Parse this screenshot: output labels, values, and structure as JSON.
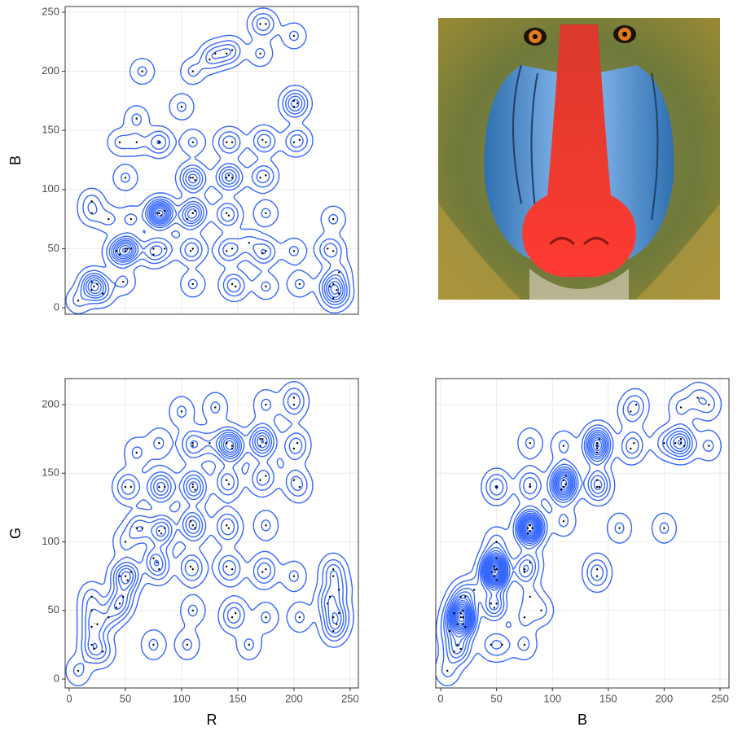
{
  "chart_data": [
    {
      "type": "density2d",
      "y_label": "B",
      "contour_color": "#3366ff",
      "point_color": "#000000",
      "grid": true,
      "x_tick_labels": false,
      "y_tick_labels": true,
      "x": [
        8,
        22,
        20,
        30,
        25,
        20,
        45,
        42,
        50,
        52,
        48,
        55,
        50,
        80,
        82,
        85,
        78,
        75,
        85,
        80,
        110,
        112,
        108,
        110,
        112,
        110,
        140,
        142,
        145,
        140,
        145,
        175,
        172,
        170,
        175,
        140,
        142,
        175,
        110,
        108,
        145,
        140,
        175,
        172,
        110,
        145,
        148,
        175,
        200,
        205,
        200,
        203,
        140,
        145,
        110,
        170,
        125,
        235,
        238,
        240,
        232,
        235,
        230,
        235,
        205,
        200,
        80,
        55,
        50,
        80,
        110,
        60,
        100,
        130,
        175,
        200,
        200,
        20,
        20,
        35,
        160,
        105,
        75,
        60,
        170,
        235,
        240,
        45,
        80,
        65
      ],
      "y": [
        6,
        18,
        15,
        12,
        20,
        22,
        45,
        48,
        48,
        50,
        22,
        75,
        50,
        80,
        78,
        82,
        80,
        50,
        50,
        80,
        80,
        82,
        110,
        110,
        108,
        80,
        110,
        112,
        110,
        140,
        140,
        140,
        142,
        110,
        112,
        80,
        78,
        80,
        50,
        48,
        50,
        48,
        48,
        46,
        20,
        20,
        18,
        18,
        140,
        142,
        170,
        173,
        215,
        218,
        200,
        215,
        210,
        20,
        15,
        12,
        18,
        48,
        50,
        75,
        20,
        48,
        140,
        50,
        110,
        80,
        140,
        140,
        170,
        215,
        240,
        230,
        175,
        90,
        80,
        75,
        55,
        75,
        45,
        160,
        240,
        8,
        30,
        140,
        140,
        200
      ],
      "xlim": [
        -3.6,
        257.3
      ],
      "ylim": [
        -5.5,
        254.8
      ],
      "xticks": [
        0,
        50,
        100,
        150,
        200,
        250
      ],
      "yticks": [
        0,
        50,
        100,
        150,
        200,
        250
      ]
    },
    {
      "type": "density2d",
      "x_label": "R",
      "y_label": "G",
      "contour_color": "#3366ff",
      "point_color": "#000000",
      "grid": true,
      "x_tick_labels": true,
      "y_tick_labels": true,
      "x": [
        8,
        22,
        20,
        30,
        25,
        20,
        45,
        42,
        50,
        52,
        48,
        55,
        50,
        80,
        82,
        85,
        78,
        75,
        85,
        80,
        110,
        112,
        108,
        110,
        112,
        110,
        140,
        142,
        145,
        140,
        145,
        175,
        172,
        170,
        175,
        140,
        142,
        175,
        110,
        108,
        145,
        140,
        175,
        172,
        110,
        145,
        148,
        175,
        200,
        205,
        200,
        203,
        140,
        145,
        110,
        170,
        125,
        235,
        238,
        240,
        232,
        235,
        230,
        235,
        205,
        200,
        80,
        55,
        50,
        80,
        110,
        60,
        100,
        130,
        175,
        200,
        200,
        20,
        20,
        35,
        160,
        105,
        75,
        60,
        170,
        235,
        240,
        45,
        80,
        65
      ],
      "y": [
        6,
        22,
        25,
        20,
        40,
        38,
        55,
        52,
        75,
        72,
        60,
        78,
        100,
        108,
        106,
        110,
        85,
        88,
        140,
        140,
        112,
        110,
        115,
        140,
        138,
        142,
        145,
        142,
        170,
        172,
        168,
        172,
        175,
        145,
        148,
        112,
        110,
        112,
        80,
        82,
        80,
        82,
        80,
        78,
        50,
        45,
        48,
        45,
        145,
        140,
        168,
        172,
        172,
        170,
        172,
        175,
        172,
        45,
        40,
        48,
        60,
        75,
        55,
        80,
        45,
        75,
        140,
        140,
        140,
        172,
        170,
        165,
        195,
        198,
        200,
        205,
        200,
        50,
        60,
        45,
        25,
        25,
        25,
        110,
        170,
        35,
        65,
        75,
        80,
        110
      ],
      "xlim": [
        -3.6,
        257.3
      ],
      "ylim": [
        -6.5,
        219
      ],
      "xticks": [
        0,
        50,
        100,
        150,
        200,
        250
      ],
      "yticks": [
        0,
        50,
        100,
        150,
        200
      ]
    },
    {
      "type": "density2d",
      "x_label": "B",
      "contour_color": "#3366ff",
      "point_color": "#000000",
      "grid": true,
      "x_tick_labels": true,
      "y_tick_labels": false,
      "x": [
        6,
        18,
        15,
        12,
        20,
        22,
        45,
        48,
        48,
        50,
        22,
        75,
        50,
        80,
        78,
        82,
        80,
        50,
        50,
        80,
        80,
        82,
        110,
        110,
        108,
        80,
        110,
        112,
        110,
        140,
        140,
        140,
        142,
        110,
        112,
        80,
        78,
        80,
        50,
        48,
        50,
        48,
        48,
        46,
        20,
        20,
        18,
        18,
        140,
        142,
        170,
        173,
        215,
        218,
        200,
        215,
        210,
        20,
        15,
        12,
        18,
        48,
        50,
        75,
        20,
        48,
        140,
        50,
        110,
        80,
        140,
        140,
        170,
        215,
        240,
        230,
        175,
        90,
        80,
        75,
        55,
        75,
        45,
        160,
        240,
        8,
        30,
        140,
        140,
        200
      ],
      "y": [
        6,
        22,
        25,
        20,
        40,
        38,
        55,
        52,
        75,
        72,
        60,
        78,
        100,
        108,
        106,
        110,
        85,
        88,
        140,
        140,
        112,
        110,
        115,
        140,
        138,
        142,
        145,
        142,
        170,
        172,
        168,
        172,
        175,
        145,
        148,
        112,
        110,
        112,
        80,
        82,
        80,
        82,
        80,
        78,
        50,
        45,
        48,
        45,
        145,
        140,
        168,
        172,
        172,
        170,
        172,
        175,
        172,
        45,
        40,
        48,
        60,
        75,
        55,
        80,
        45,
        75,
        140,
        140,
        140,
        172,
        170,
        165,
        195,
        198,
        200,
        205,
        200,
        50,
        60,
        45,
        25,
        25,
        25,
        110,
        170,
        35,
        65,
        75,
        80,
        110
      ],
      "xlim": [
        -4.4,
        258
      ],
      "ylim": [
        -6.5,
        219
      ],
      "xticks": [
        0,
        50,
        100,
        150,
        200,
        250
      ],
      "yticks": [
        0,
        50,
        100,
        150,
        200
      ]
    }
  ]
}
